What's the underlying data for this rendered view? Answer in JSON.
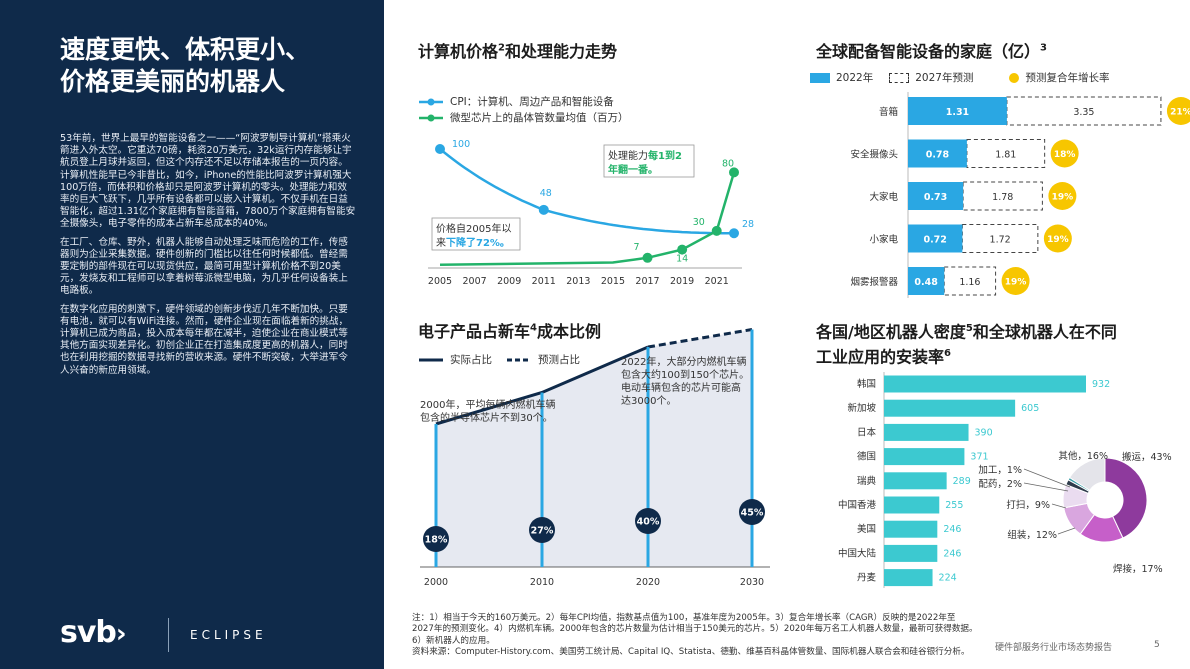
{
  "left": {
    "title_line1": "速度更快、体积更小、",
    "title_line2": "价格更美丽的机器人",
    "paragraphs": [
      "53年前，世界上最早的智能设备之一——“阿波罗制导计算机”搭乘火箭进入外太空。它重达70磅，耗资20万美元，32k运行内存能够让宇航员登上月球并返回，但这个内存还不足以存储本报告的一页内容。计算机性能早已今非昔比，如今，iPhone的性能比阿波罗计算机强大100万倍，而体积和价格却只是阿波罗计算机的零头。处理能力和效率的巨大飞跃下，几乎所有设备都可以嵌入计算机。不仅手机在日益智能化，超过1.31亿个家庭拥有智能音箱，7800万个家庭拥有智能安全摄像头，电子零件的成本占新车总成本的40%。",
      "在工厂、仓库、野外，机器人能够自动处理乏味而危险的工作，传感器则为企业采集数据。硬件创新的门槛比以往任何时候都低。曾经需要定制的部件现在可以现货供应，最简可用型计算机价格不到20美元，发烧友和工程师可以拿着树莓派微型电脑，为几乎任何设备装上电路板。",
      "在数字化应用的刺激下，硬件领域的创新步伐近几年不断加快。只要有电池，就可以有WiFi连接。然而，硬件企业现在面临着新的挑战，计算机已成为商品，投入成本每年都在减半，迫使企业在商业模式等其他方面实现差异化。初创企业正在打造集成度更高的机器人，同时也在利用挖掘的数据寻找新的营收来源。硬件不断突破，大举进军令人兴奋的新应用领域。"
    ],
    "logo_svb": "svb",
    "logo_eclipse": "ECLIPSE"
  },
  "colors": {
    "navy": "#0f2a4a",
    "blue": "#2aa7e3",
    "green": "#23b36a",
    "teal": "#3cc9d0",
    "yellow": "#f7c600",
    "purple": "#9b3fa8"
  },
  "chart1": {
    "title": "计算机价格",
    "title_sup": "2",
    "title_rest": "和处理能力走势",
    "legend_cpi": "CPI：计算机、周边产品和智能设备",
    "legend_chips": "微型芯片上的晶体管数量均值（百万）",
    "annot_price_1": "价格自2005年以",
    "annot_price_2a": "来",
    "annot_price_2b": "下降了72%。",
    "annot_power_1a": "处理能力",
    "annot_power_1b": "每1到2",
    "annot_power_2": "年翻一番。"
  },
  "chart2": {
    "title": "全球配备智能设备的家庭（亿）",
    "title_sup": "3",
    "legend_2022": "2022年",
    "legend_2027": "2027年预测",
    "legend_cagr": "预测复合年增长率"
  },
  "chart3": {
    "title": "电子产品占新车",
    "title_sup": "4",
    "title_rest": "成本比例",
    "legend_actual": "实际占比",
    "legend_forecast": "预测占比",
    "annot_2000_1": "2000年，平均每辆内燃机车辆",
    "annot_2000_2": "包含的半导体芯片不到30个。",
    "annot_2022_1": "2022年，大部分内燃机车辆",
    "annot_2022_2": "包含大约100到150个芯片。",
    "annot_2022_3": "电动车辆包含的芯片可能高",
    "annot_2022_4": "达3000个。"
  },
  "chart4": {
    "title_line1": "各国/地区机器人密度",
    "title_sup1": "5",
    "title_line1_rest": "和全球机器人在不同",
    "title_line2": "工业应用的安装率",
    "title_sup2": "6"
  },
  "chart_data": [
    {
      "type": "line",
      "x_ticks": [
        "2005",
        "2007",
        "2009",
        "2011",
        "2013",
        "2015",
        "2017",
        "2019",
        "2021"
      ],
      "series": [
        {
          "name": "CPI：计算机、周边产品和智能设备",
          "x": [
            2005,
            2011,
            2022
          ],
          "values": [
            100,
            48,
            28
          ],
          "labels": [
            "100",
            "48",
            "28"
          ]
        },
        {
          "name": "微型芯片上的晶体管数量均值（百万）",
          "x": [
            2017,
            2019,
            2021,
            2022
          ],
          "values": [
            7,
            14,
            30,
            80
          ],
          "labels": [
            "7",
            "14",
            "30",
            "80"
          ]
        }
      ],
      "ylim": [
        0,
        100
      ]
    },
    {
      "type": "bar",
      "categories": [
        "音箱",
        "安全摄像头",
        "大家电",
        "小家电",
        "烟雾报警器"
      ],
      "series": [
        {
          "name": "2022年",
          "values": [
            1.31,
            0.78,
            0.73,
            0.72,
            0.48
          ],
          "labels": [
            "1.31",
            "0.78",
            "0.73",
            "0.72",
            "0.48"
          ]
        },
        {
          "name": "2027年预测",
          "values": [
            3.35,
            1.81,
            1.78,
            1.72,
            1.16
          ],
          "labels": [
            "3.35",
            "1.81",
            "1.78",
            "1.72",
            "1.16"
          ]
        }
      ],
      "cagr": [
        "21%",
        "18%",
        "19%",
        "19%",
        "19%"
      ]
    },
    {
      "type": "area",
      "x": [
        "2000",
        "2010",
        "2020",
        "2030"
      ],
      "values": [
        18,
        27,
        40,
        45
      ],
      "labels": [
        "18%",
        "27%",
        "40%",
        "45%"
      ],
      "series": [
        {
          "name": "实际占比",
          "x": [
            "2000",
            "2010",
            "2020"
          ]
        },
        {
          "name": "预测占比",
          "x": [
            "2020",
            "2030"
          ]
        }
      ]
    },
    {
      "type": "bar",
      "categories": [
        "韩国",
        "新加坡",
        "日本",
        "德国",
        "瑞典",
        "中国香港",
        "美国",
        "中国大陆",
        "丹麦"
      ],
      "values": [
        932,
        605,
        390,
        371,
        289,
        255,
        246,
        246,
        224
      ],
      "labels": [
        "932",
        "605",
        "390",
        "371",
        "289",
        "255",
        "246",
        "246",
        "224"
      ]
    },
    {
      "type": "pie",
      "categories": [
        "搬运",
        "焊接",
        "组装",
        "打扫",
        "配药",
        "加工",
        "其他"
      ],
      "values": [
        43,
        17,
        12,
        9,
        2,
        1,
        16
      ],
      "labels": [
        "搬运，43%",
        "焊接，17%",
        "组装，12%",
        "打扫，9%",
        "配药，2%",
        "加工，1%",
        "其他，16%"
      ],
      "colors": [
        "#8e3a9d",
        "#c65fc9",
        "#d9a6df",
        "#eadcf0",
        "#2f3c4c",
        "#3c9fa8",
        "#e4e4ea"
      ]
    }
  ],
  "notes": {
    "line1": "注：1）相当于今天的160万美元。2）每年CPI均值，指数基点值为100，基准年度为2005年。3）复合年增长率（CAGR）反映的是2022年至",
    "line2": "2027年的预测变化。4）内燃机车辆。2000年包含的芯片数量为估计相当于150美元的芯片。5）2020年每万名工人机器人数量，最新可获得数据。",
    "line3": "6）新机器人的应用。",
    "line4": "资料来源：Computer-History.com、美国劳工统计局、Capital IQ、Statista、德勤、维基百科晶体管数量、国际机器人联合会和硅谷银行分析。"
  },
  "footer": {
    "text": "硬件部服务行业市场态势报告",
    "page": "5"
  }
}
